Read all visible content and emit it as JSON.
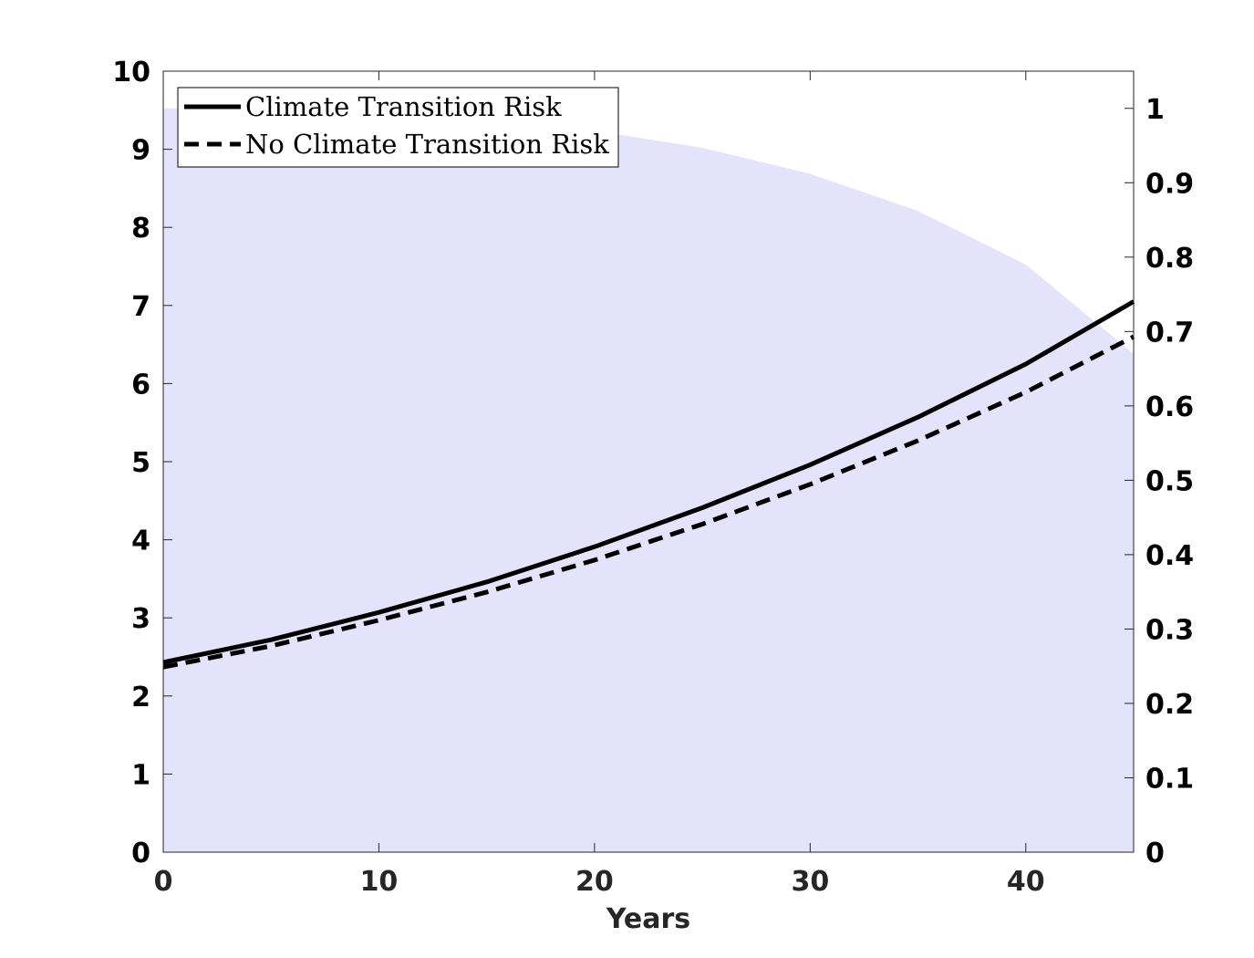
{
  "chart_data": {
    "type": "line",
    "title": "",
    "xlabel": "Years",
    "ylabel": "",
    "y2label": "",
    "xlim": [
      0,
      45
    ],
    "ylim": [
      0,
      10
    ],
    "y2lim": [
      0,
      1.05
    ],
    "xticks": [
      0,
      10,
      20,
      30,
      40
    ],
    "yticks": [
      0,
      1,
      2,
      3,
      4,
      5,
      6,
      7,
      8,
      9,
      10
    ],
    "y2ticks": [
      0,
      0.1,
      0.2,
      0.3,
      0.4,
      0.5,
      0.6,
      0.7,
      0.8,
      0.9,
      1
    ],
    "y2tick_labels": [
      "0",
      "0.1",
      "0.2",
      "0.3",
      "0.4",
      "0.5",
      "0.6",
      "0.7",
      "0.8",
      "0.9",
      "1"
    ],
    "grid": false,
    "legend_position": "top-left",
    "x": [
      0,
      5,
      10,
      15,
      20,
      25,
      30,
      35,
      40,
      45
    ],
    "series": [
      {
        "name": "Climate Transition Risk",
        "style": "solid",
        "color": "#000000",
        "values": [
          2.43,
          2.72,
          3.07,
          3.46,
          3.91,
          4.41,
          4.96,
          5.57,
          6.25,
          7.05
        ]
      },
      {
        "name": "No Climate Transition Risk",
        "style": "dashed",
        "color": "#000000",
        "values": [
          2.37,
          2.64,
          2.97,
          3.33,
          3.74,
          4.2,
          4.71,
          5.27,
          5.89,
          6.6
        ]
      }
    ],
    "shaded_area": {
      "axis": "right",
      "color": "#e3e3fb",
      "x": [
        0,
        5,
        10,
        15,
        20,
        25,
        30,
        35,
        40,
        45
      ],
      "values": [
        1.0,
        0.998,
        0.993,
        0.985,
        0.97,
        0.947,
        0.912,
        0.862,
        0.79,
        0.67
      ]
    }
  }
}
